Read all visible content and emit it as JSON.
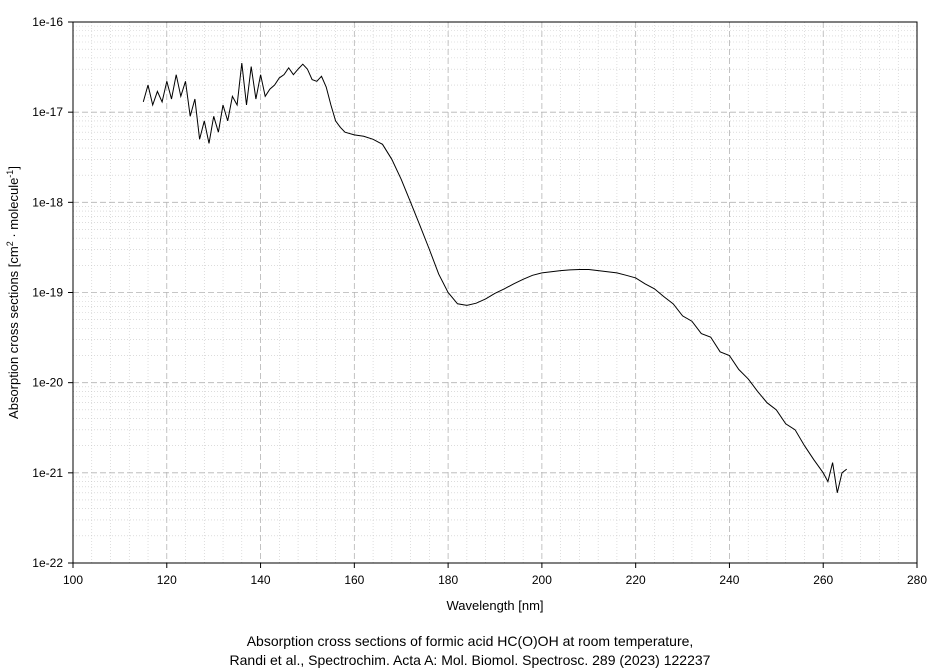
{
  "chart_data": {
    "type": "line",
    "xlabel": "Wavelength [nm]",
    "ylabel_parts": [
      "Absorption cross sections [cm",
      "2",
      " · molecule",
      "-1",
      "]"
    ],
    "xlim": [
      100,
      280
    ],
    "ylim": [
      1e-22,
      1e-16
    ],
    "yscale": "log",
    "grid": true,
    "x_ticks": [
      100,
      120,
      140,
      160,
      180,
      200,
      220,
      240,
      260,
      280
    ],
    "x_tick_labels": [
      "100",
      "120",
      "140",
      "160",
      "180",
      "200",
      "220",
      "240",
      "260",
      "280"
    ],
    "y_ticks": [
      1e-16,
      1e-17,
      1e-18,
      1e-19,
      1e-20,
      1e-21,
      1e-22
    ],
    "y_tick_labels": [
      "1e-16",
      "1e-17",
      "1e-18",
      "1e-19",
      "1e-20",
      "1e-21",
      "1e-22"
    ],
    "series": [
      {
        "color": "#000000",
        "x": [
          115,
          116,
          117,
          118,
          119,
          120,
          121,
          122,
          123,
          124,
          125,
          126,
          127,
          128,
          129,
          130,
          131,
          132,
          133,
          134,
          135,
          136,
          137,
          138,
          139,
          140,
          141,
          142,
          143,
          144,
          145,
          146,
          147,
          148,
          149,
          150,
          151,
          152,
          153,
          154,
          155,
          156,
          157,
          158,
          160,
          162,
          164,
          166,
          168,
          170,
          172,
          174,
          176,
          178,
          180,
          182,
          184,
          186,
          188,
          190,
          192,
          194,
          196,
          198,
          200,
          202,
          204,
          206,
          208,
          210,
          212,
          214,
          216,
          218,
          220,
          222,
          224,
          226,
          228,
          230,
          232,
          234,
          236,
          238,
          240,
          242,
          244,
          246,
          248,
          250,
          252,
          254,
          256,
          258,
          260,
          261,
          262,
          263,
          264,
          265
        ],
        "y": [
          1.3e-17,
          2e-17,
          1.2e-17,
          1.7e-17,
          1.3e-17,
          2.2e-17,
          1.4e-17,
          2.6e-17,
          1.5e-17,
          2.2e-17,
          9e-18,
          1.4e-17,
          5e-18,
          8e-18,
          4.5e-18,
          9e-18,
          6e-18,
          1.2e-17,
          8e-18,
          1.5e-17,
          1.2e-17,
          3.5e-17,
          1.2e-17,
          3.2e-17,
          1.4e-17,
          2.6e-17,
          1.5e-17,
          1.8e-17,
          2e-17,
          2.4e-17,
          2.6e-17,
          3.1e-17,
          2.6e-17,
          3e-17,
          3.4e-17,
          3e-17,
          2.3e-17,
          2.2e-17,
          2.5e-17,
          1.9e-17,
          1.2e-17,
          8e-18,
          6.8e-18,
          6e-18,
          5.6e-18,
          5.4e-18,
          5e-18,
          4.4e-18,
          3e-18,
          1.8e-18,
          1e-18,
          5.5e-19,
          3e-19,
          1.6e-19,
          1e-19,
          7.5e-20,
          7.2e-20,
          7.6e-20,
          8.5e-20,
          9.8e-20,
          1.1e-19,
          1.25e-19,
          1.4e-19,
          1.55e-19,
          1.65e-19,
          1.7e-19,
          1.75e-19,
          1.78e-19,
          1.8e-19,
          1.8e-19,
          1.75e-19,
          1.7e-19,
          1.65e-19,
          1.55e-19,
          1.45e-19,
          1.25e-19,
          1.1e-19,
          9e-20,
          7.5e-20,
          5.5e-20,
          4.8e-20,
          3.5e-20,
          3.2e-20,
          2.2e-20,
          2e-20,
          1.4e-20,
          1.1e-20,
          8e-21,
          6e-21,
          5e-21,
          3.5e-21,
          3e-21,
          2e-21,
          1.4e-21,
          1e-21,
          8e-22,
          1.3e-21,
          6e-22,
          1e-21,
          1.1e-21
        ]
      }
    ],
    "caption_line1": "Absorption cross sections of formic acid HC(O)OH at room temperature,",
    "caption_line2": "Randi et al., Spectrochim. Acta A: Mol. Biomol. Spectrosc. 289 (2023) 122237"
  }
}
